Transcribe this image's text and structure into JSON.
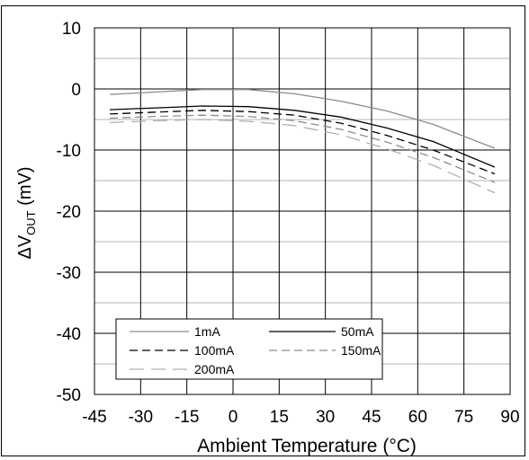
{
  "chart_data": {
    "type": "line",
    "title": "",
    "xlabel": "Ambient Temperature (°C)",
    "ylabel_prefix": "ΔV",
    "ylabel_sub": "OUT",
    "ylabel_suffix": " (mV)",
    "xlim": [
      -45,
      90
    ],
    "ylim": [
      -50,
      10
    ],
    "x_ticks": [
      -45,
      -30,
      -15,
      0,
      15,
      30,
      45,
      60,
      75,
      90
    ],
    "y_ticks": [
      10,
      0,
      -10,
      -20,
      -30,
      -40,
      -50
    ],
    "x_tick_labels": [
      "-45",
      "-30",
      "-15",
      "0",
      "15",
      "30",
      "45",
      "60",
      "75",
      "90"
    ],
    "y_tick_labels": [
      "10",
      "0",
      "-10",
      "-20",
      "-30",
      "-40",
      "-50"
    ],
    "grid": true,
    "legend_placement": "bottom-left",
    "x": [
      -40,
      -25,
      -10,
      5,
      20,
      35,
      50,
      65,
      85
    ],
    "series": [
      {
        "name": "1mA",
        "color": "#8c8c8c",
        "dash": "solid",
        "values": [
          -0.9,
          -0.5,
          -0.1,
          -0.1,
          -0.8,
          -2.0,
          -3.6,
          -5.8,
          -9.7
        ]
      },
      {
        "name": "50mA",
        "color": "#000000",
        "dash": "solid",
        "values": [
          -3.4,
          -3.1,
          -2.8,
          -2.9,
          -3.5,
          -4.6,
          -6.4,
          -8.6,
          -12.8
        ]
      },
      {
        "name": "100mA",
        "color": "#000000",
        "dash": "dashed",
        "values": [
          -4.1,
          -3.8,
          -3.5,
          -3.7,
          -4.3,
          -5.6,
          -7.6,
          -10.0,
          -13.9
        ]
      },
      {
        "name": "150mA",
        "color": "#8c8c8c",
        "dash": "dashed",
        "values": [
          -4.8,
          -4.5,
          -4.3,
          -4.5,
          -5.2,
          -6.6,
          -8.7,
          -11.2,
          -15.3
        ]
      },
      {
        "name": "200mA",
        "color": "#b0b0b0",
        "dash": "longdash",
        "values": [
          -5.5,
          -5.2,
          -5.0,
          -5.3,
          -6.0,
          -7.5,
          -9.8,
          -12.5,
          -17.0
        ]
      }
    ]
  }
}
